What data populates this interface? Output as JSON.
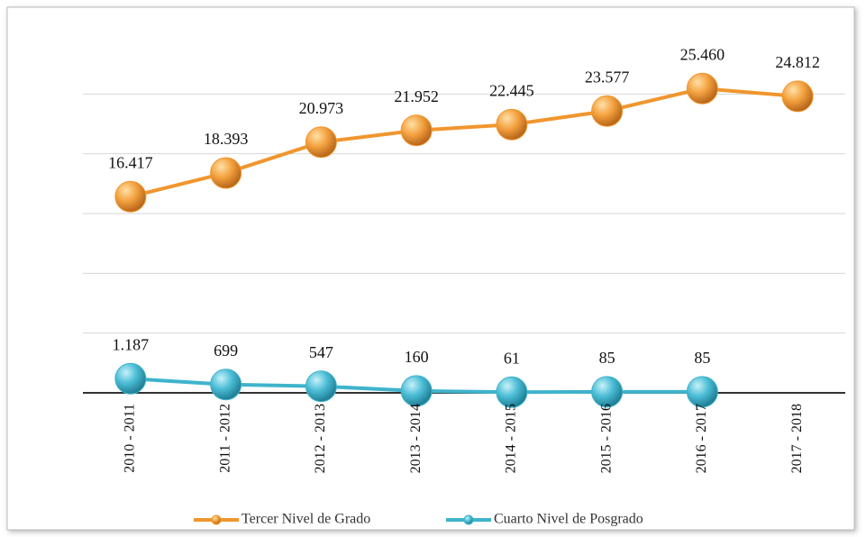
{
  "chart_data": {
    "type": "line",
    "categories": [
      "2010 - 2011",
      "2011 - 2012",
      "2012 - 2013",
      "2013 - 2014",
      "2014 - 2015",
      "2015 - 2016",
      "2016 - 2017",
      "2017 - 2018"
    ],
    "series": [
      {
        "name": "Tercer Nivel de Grado",
        "color": "#f0962e",
        "values": [
          16417,
          18393,
          20973,
          21952,
          22445,
          23577,
          25460,
          24812
        ],
        "value_labels": [
          "16.417",
          "18.393",
          "20.973",
          "21.952",
          "22.445",
          "23.577",
          "25.460",
          "24.812"
        ]
      },
      {
        "name": "Cuarto Nivel de Posgrado",
        "color": "#3fb3cc",
        "values": [
          1187,
          699,
          547,
          160,
          61,
          85,
          85,
          null
        ],
        "value_labels": [
          "1.187",
          "699",
          "547",
          "160",
          "61",
          "85",
          "85",
          null
        ]
      }
    ],
    "ylim": [
      0,
      30000
    ],
    "yticks": [
      0,
      5000,
      10000,
      15000,
      20000,
      25000
    ],
    "grid": true
  }
}
